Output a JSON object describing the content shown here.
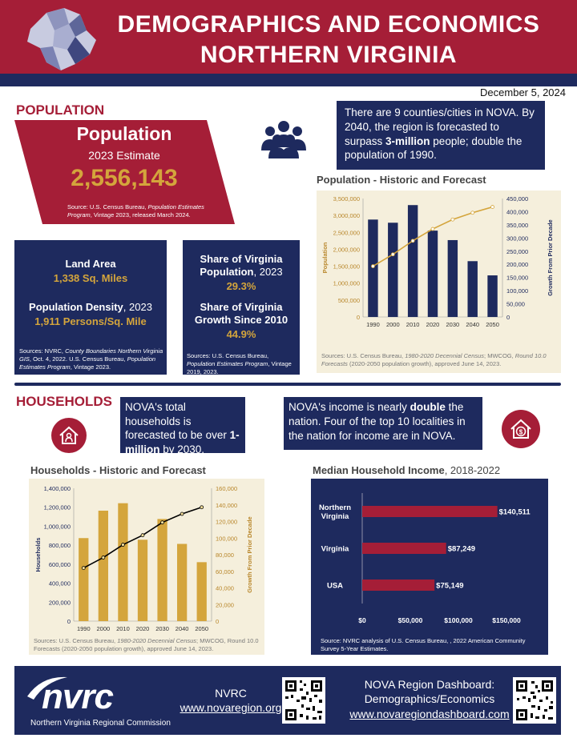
{
  "header": {
    "title_line1": "DEMOGRAPHICS AND ECONOMICS",
    "title_line2": "NORTHERN VIRGINIA",
    "date": "December 5, 2024"
  },
  "population_section": {
    "heading": "POPULATION",
    "card_title": "Population",
    "card_subtitle": "2023 Estimate",
    "card_value": "2,556,143",
    "card_source_a": "Source: U.S. Census Bureau, ",
    "card_source_b": "Population Estimates Program",
    "card_source_c": ", Vintage 2023, released March 2024.",
    "callout_a": "There are 9 counties/cities in NOVA. By 2040, the region is forecasted to surpass ",
    "callout_b": "3-million",
    "callout_c": " people; double the population of 1990."
  },
  "land_box": {
    "land_label": "Land Area",
    "land_value": "1,338 Sq. Miles",
    "density_label_a": "Population Density",
    "density_label_b": ", 2023",
    "density_value": "1,911 Persons/Sq. Mile",
    "source_a": "Sources: NVRC, ",
    "source_b": "County Boundaries Northern Virginia GIS",
    "source_c": ", Oct. 4, 2022.  U.S. Census Bureau, ",
    "source_d": "Population Estimates Program",
    "source_e": ", Vintage 2023."
  },
  "share_box": {
    "share_label_a": "Share of Virginia Population",
    "share_label_b": ", 2023",
    "share_value": "29.3%",
    "growth_label": "Share of Virginia Growth Since 2010",
    "growth_value": "44.9%",
    "source_a": "Sources: U.S. Census Bureau, ",
    "source_b": "Population Estimates Program",
    "source_c": ", Vintage 2019, 2023."
  },
  "households_section": {
    "heading": "HOUSEHOLDS",
    "callout1_a": "NOVA's total households is forecasted to be over ",
    "callout1_b": "1-million",
    "callout1_c": " by 2030.",
    "callout2_a": "NOVA's income is nearly ",
    "callout2_b": "double",
    "callout2_c": " the nation.  Four of the top 10 localities in the nation for income are in NOVA."
  },
  "pop_chart_source": {
    "a": "Sources: U.S. Census Bureau, ",
    "b": "1980-2020 Decennial Census",
    "c": "; MWCOG, ",
    "d": "Round 10.0 Forecasts",
    "e": " (2020-2050 population growth), approved June 14, 2023."
  },
  "hh_chart_source": {
    "a": "Sources: U.S. Census Bureau, ",
    "b": "1980-2020 Decennial Census",
    "c": "; MWCOG, Round 10.0 Forecasts (2020-2050 population growth), approved June 14, 2023."
  },
  "income_chart_source": "Source: NVRC analysis of U.S. Census Bureau, , 2022 American Community Survey 5-Year Estimates.",
  "footer": {
    "logo_text": "nvrc",
    "logo_subtitle": "Northern Virginia Regional Commission",
    "org_name": "NVRC",
    "org_url": "www.novaregion.org",
    "dashboard_line1": "NOVA Region Dashboard:",
    "dashboard_line2": "Demographics/Economics",
    "dashboard_url": "www.novaregiondashboard.com"
  },
  "icons": [
    "people-group-icon",
    "house-person-icon",
    "house-dollar-icon",
    "virginia-map-icon",
    "qr-code-icon"
  ],
  "colors": {
    "brand_red": "#a51e37",
    "navy": "#1e2a5e",
    "gold": "#d4a53c",
    "panel_beige": "#f5efdc"
  },
  "chart_data": [
    {
      "type": "bar",
      "title": "Population - Historic and Forecast",
      "categories": [
        "1990",
        "2000",
        "2010",
        "2020",
        "2030",
        "2040",
        "2050"
      ],
      "series": [
        {
          "kind": "bar",
          "axis": "right",
          "color": "#1e2a5e",
          "values": [
            370000,
            358000,
            425000,
            328000,
            292000,
            212000,
            158000
          ]
        },
        {
          "kind": "line",
          "axis": "left",
          "color": "#d4a53c",
          "values": [
            1500000,
            1850000,
            2250000,
            2600000,
            2880000,
            3080000,
            3250000
          ]
        }
      ],
      "ylabel": "Population",
      "y2label": "Growth From Prior Decade",
      "ylim": [
        0,
        3500000
      ],
      "y2lim": [
        0,
        450000
      ],
      "yticks": [
        "0",
        "500,000",
        "1,000,000",
        "1,500,000",
        "2,000,000",
        "2,500,000",
        "3,000,000",
        "3,500,000"
      ],
      "y2ticks": [
        "0",
        "50,000",
        "100,000",
        "150,000",
        "200,000",
        "250,000",
        "300,000",
        "350,000",
        "400,000",
        "450,000"
      ]
    },
    {
      "type": "bar",
      "title": "Households - Historic and Forecast",
      "categories": [
        "1990",
        "2000",
        "2010",
        "2020",
        "2030",
        "2040",
        "2050"
      ],
      "series": [
        {
          "kind": "bar",
          "axis": "right",
          "color": "#d4a53c",
          "values": [
            100000,
            133000,
            142000,
            98000,
            123000,
            93000,
            71000
          ]
        },
        {
          "kind": "line",
          "axis": "left",
          "color": "#000000",
          "values": [
            560000,
            670000,
            805000,
            905000,
            1040000,
            1130000,
            1200000
          ]
        }
      ],
      "ylabel": "Households",
      "y2label": "Growth From Prior Decade",
      "ylim": [
        0,
        1400000
      ],
      "y2lim": [
        0,
        160000
      ],
      "yticks": [
        "0",
        "200,000",
        "400,000",
        "600,000",
        "800,000",
        "1,000,000",
        "1,200,000",
        "1,400,000"
      ],
      "y2ticks": [
        "0",
        "20,000",
        "40,000",
        "60,000",
        "80,000",
        "100,000",
        "120,000",
        "140,000",
        "160,000"
      ]
    },
    {
      "type": "bar",
      "orientation": "horizontal",
      "title": "Median Household Income, 2018-2022",
      "title_bold": "Median Household Income",
      "title_rest": ", 2018-2022",
      "categories": [
        "Northern Virginia",
        "Virginia",
        "USA"
      ],
      "values": [
        140511,
        87249,
        75149
      ],
      "value_labels": [
        "$140,511",
        "$87,249",
        "$75,149"
      ],
      "xlim": [
        0,
        160000
      ],
      "xticks": [
        "$0",
        "$50,000",
        "$100,000",
        "$150,000"
      ],
      "color": "#a51e37"
    }
  ]
}
